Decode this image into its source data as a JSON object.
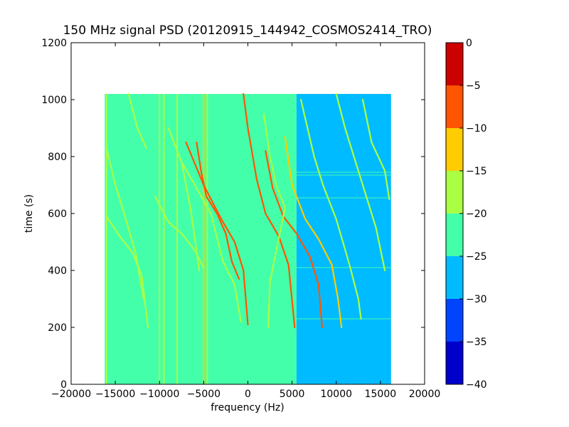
{
  "chart_data": {
    "type": "heatmap",
    "title": "150 MHz signal PSD (20120915_144942_COSMOS2414_TRO)",
    "xlabel": "frequency (Hz)",
    "ylabel": "time (s)",
    "xlim": [
      -20000,
      20000
    ],
    "ylim": [
      0,
      1200
    ],
    "xticks": [
      -20000,
      -15000,
      -10000,
      -5000,
      0,
      5000,
      10000,
      15000,
      20000
    ],
    "xtick_labels": [
      "−20000",
      "−15000",
      "−10000",
      "−5000",
      "0",
      "5000",
      "10000",
      "15000",
      "20000"
    ],
    "yticks": [
      0,
      200,
      400,
      600,
      800,
      1000,
      1200
    ],
    "ytick_labels": [
      "0",
      "200",
      "400",
      "600",
      "800",
      "1000",
      "1200"
    ],
    "data_extent": {
      "x": [
        -16200,
        16200
      ],
      "y": [
        0,
        1020
      ]
    },
    "colorbar": {
      "levels": [
        -40,
        -35,
        -30,
        -25,
        -20,
        -15,
        -10,
        -5,
        0
      ],
      "tick_labels": [
        "−40",
        "−35",
        "−30",
        "−25",
        "−20",
        "−15",
        "−10",
        "−5",
        "0"
      ],
      "colors": [
        "#0000cc",
        "#0044ff",
        "#00bbff",
        "#44ffaa",
        "#aaff44",
        "#ffcc00",
        "#ff5500",
        "#cc0000"
      ]
    },
    "background_level_dB": {
      "left_band": {
        "x": [
          -16200,
          5500
        ],
        "value": -22.5
      },
      "right_band": {
        "x": [
          5500,
          16200
        ],
        "value": -27.5
      }
    },
    "vertical_lines": [
      {
        "x": -16000,
        "value": -17
      },
      {
        "x": -10000,
        "value": -17
      },
      {
        "x": -9500,
        "value": -17
      },
      {
        "x": -8000,
        "value": -17
      },
      {
        "x": -5000,
        "value": -13
      },
      {
        "x": -4600,
        "value": -17
      }
    ],
    "tracks": [
      {
        "points": [
          [
            -16000,
            590
          ],
          [
            -14500,
            520
          ],
          [
            -13000,
            460
          ],
          [
            -12000,
            380
          ],
          [
            -11300,
            200
          ]
        ],
        "value": -17
      },
      {
        "points": [
          [
            -16000,
            830
          ],
          [
            -15000,
            700
          ],
          [
            -14000,
            600
          ],
          [
            -12700,
            460
          ],
          [
            -11800,
            300
          ]
        ],
        "value": -17
      },
      {
        "points": [
          [
            -10500,
            660
          ],
          [
            -9000,
            570
          ],
          [
            -7500,
            530
          ],
          [
            -6000,
            470
          ],
          [
            -5000,
            410
          ]
        ],
        "value": -17
      },
      {
        "points": [
          [
            -5800,
            850
          ],
          [
            -5300,
            750
          ],
          [
            -4700,
            660
          ],
          [
            -3500,
            600
          ],
          [
            -2500,
            530
          ],
          [
            -1800,
            430
          ],
          [
            -1000,
            370
          ]
        ],
        "value": -8
      },
      {
        "points": [
          [
            -7000,
            850
          ],
          [
            -5000,
            700
          ],
          [
            -3000,
            580
          ],
          [
            -1500,
            500
          ],
          [
            -500,
            400
          ],
          [
            0,
            210
          ]
        ],
        "value": -8
      },
      {
        "points": [
          [
            -500,
            1020
          ],
          [
            0,
            900
          ],
          [
            1000,
            720
          ],
          [
            2000,
            600
          ],
          [
            3500,
            520
          ],
          [
            4600,
            420
          ],
          [
            5300,
            200
          ]
        ],
        "value": -5
      },
      {
        "points": [
          [
            2000,
            820
          ],
          [
            2800,
            690
          ],
          [
            4000,
            590
          ],
          [
            5500,
            530
          ],
          [
            7000,
            450
          ],
          [
            8000,
            350
          ],
          [
            8400,
            200
          ]
        ],
        "value": -8
      },
      {
        "points": [
          [
            4200,
            870
          ],
          [
            5000,
            700
          ],
          [
            6500,
            580
          ],
          [
            8000,
            510
          ],
          [
            9500,
            420
          ],
          [
            10200,
            300
          ],
          [
            10600,
            200
          ]
        ],
        "value": -10
      },
      {
        "points": [
          [
            1800,
            950
          ],
          [
            2500,
            800
          ],
          [
            3200,
            700
          ],
          [
            4200,
            620
          ],
          [
            2500,
            360
          ],
          [
            2300,
            200
          ]
        ],
        "value": -15
      },
      {
        "points": [
          [
            6000,
            1000
          ],
          [
            7500,
            800
          ],
          [
            8500,
            700
          ],
          [
            10000,
            580
          ],
          [
            11500,
            420
          ],
          [
            12500,
            300
          ],
          [
            12800,
            230
          ]
        ],
        "value": -15
      },
      {
        "points": [
          [
            10000,
            1020
          ],
          [
            11000,
            900
          ],
          [
            12500,
            750
          ],
          [
            13500,
            650
          ],
          [
            14500,
            550
          ],
          [
            15500,
            400
          ]
        ],
        "value": -15
      },
      {
        "points": [
          [
            13000,
            1000
          ],
          [
            14000,
            850
          ],
          [
            15500,
            750
          ],
          [
            16000,
            650
          ]
        ],
        "value": -15
      },
      {
        "points": [
          [
            -13500,
            1020
          ],
          [
            -12500,
            900
          ],
          [
            -11500,
            830
          ]
        ],
        "value": -17
      },
      {
        "points": [
          [
            -9000,
            900
          ],
          [
            -7500,
            780
          ],
          [
            -6000,
            700
          ],
          [
            -4200,
            600
          ],
          [
            -2800,
            430
          ],
          [
            -1500,
            350
          ],
          [
            -800,
            220
          ]
        ],
        "value": -17
      },
      {
        "points": [
          [
            -7500,
            780
          ],
          [
            -6500,
            620
          ],
          [
            -5500,
            400
          ]
        ],
        "value": -17
      }
    ],
    "horizontal_lines": [
      {
        "y": 230,
        "x": [
          4500,
          16200
        ],
        "value": -20
      },
      {
        "y": 410,
        "x": [
          -16200,
          16200
        ],
        "value": -20
      },
      {
        "y": 655,
        "x": [
          -16200,
          16200
        ],
        "value": -20
      },
      {
        "y": 735,
        "x": [
          -16200,
          16200
        ],
        "value": -20
      },
      {
        "y": 745,
        "x": [
          -16200,
          16200
        ],
        "value": -20
      }
    ]
  }
}
